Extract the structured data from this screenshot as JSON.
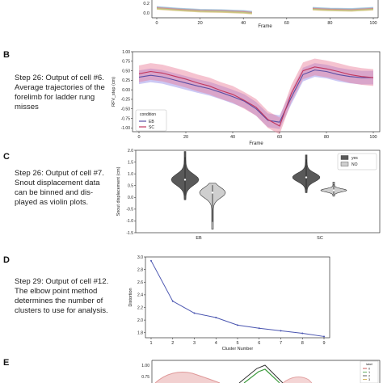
{
  "labels": [
    "B",
    "C",
    "D",
    "E"
  ],
  "descriptions": {
    "b": "Step 26: Output of cell #6.\nAverage trajectories of the\nforelimb for ladder rung\nmisses",
    "c": "Step 26: Output of cell #7.\nSnout displacement data\ncan be binned and dis-\nplayed as violin plots.",
    "d": "Step 29: Output of cell #12.\nThe elbow point method\ndetermines the number of\nclusters to use for analysis."
  },
  "colors": {
    "eb": "#5b4fa3",
    "eb_band": "#8f86e6",
    "sc": "#c2375e",
    "sc_band": "#e87b96",
    "violin_eb": "#595959",
    "violin_sc": "#cfcfcf",
    "line_d": "#4a55b0"
  },
  "chart_data": [
    {
      "id": "top_partial",
      "type": "line",
      "xlabel": "Frame",
      "xticks": [
        0,
        20,
        40,
        60,
        80,
        100
      ],
      "yticks": [
        0.2,
        0.0
      ],
      "note": "partially visible at top edge"
    },
    {
      "id": "b",
      "type": "line",
      "xlabel": "Frame",
      "ylabel": "RFV_step (cm)",
      "xlim": [
        0,
        100
      ],
      "ylim": [
        -1.1,
        1.0
      ],
      "xticks": [
        0,
        20,
        40,
        60,
        80,
        100
      ],
      "yticks": [
        1.0,
        0.75,
        0.5,
        0.25,
        0.0,
        -0.25,
        -0.5,
        -0.75,
        -1.0
      ],
      "legend_title": "condition",
      "legend_position": "lower-left",
      "x": [
        0,
        5,
        10,
        15,
        20,
        25,
        30,
        35,
        40,
        45,
        50,
        55,
        60,
        65,
        70,
        75,
        80,
        85,
        90,
        95,
        100
      ],
      "series": [
        {
          "name": "EB",
          "values": [
            0.33,
            0.38,
            0.34,
            0.26,
            0.18,
            0.1,
            0.03,
            -0.07,
            -0.18,
            -0.3,
            -0.5,
            -0.8,
            -0.85,
            -0.2,
            0.4,
            0.52,
            0.48,
            0.4,
            0.35,
            0.32,
            0.32
          ],
          "band": 0.18
        },
        {
          "name": "SC",
          "values": [
            0.42,
            0.48,
            0.44,
            0.36,
            0.28,
            0.18,
            0.1,
            -0.02,
            -0.12,
            -0.28,
            -0.46,
            -0.78,
            -0.95,
            -0.1,
            0.5,
            0.6,
            0.55,
            0.48,
            0.4,
            0.35,
            0.32
          ],
          "band": 0.22
        }
      ]
    },
    {
      "id": "c",
      "type": "violin",
      "ylabel": "Snout displacement (cm)",
      "ylim": [
        -1.5,
        2.0
      ],
      "yticks": [
        2.0,
        1.5,
        1.0,
        0.5,
        0.0,
        -0.5,
        -1.0,
        -1.5
      ],
      "categories": [
        "EB",
        "SC"
      ],
      "legend_position": "top-right",
      "series": [
        {
          "name": "yes",
          "medians": [
            0.75,
            0.85
          ],
          "min": [
            -0.1,
            0.2
          ],
          "max": [
            1.95,
            1.8
          ]
        },
        {
          "name": "NO",
          "medians": [
            0.2,
            0.3
          ],
          "min": [
            -1.35,
            0.05
          ],
          "max": [
            0.6,
            0.65
          ]
        }
      ]
    },
    {
      "id": "d",
      "type": "line",
      "xlabel": "Cluster Number",
      "ylabel": "Distortion",
      "xlim": [
        1,
        9
      ],
      "ylim": [
        1.72,
        3.0
      ],
      "xticks": [
        1,
        2,
        3,
        4,
        5,
        6,
        7,
        8,
        9
      ],
      "yticks": [
        3.0,
        2.8,
        2.6,
        2.4,
        2.2,
        2.0,
        1.8
      ],
      "x": [
        1,
        2,
        3,
        4,
        5,
        6,
        7,
        8,
        9
      ],
      "values": [
        2.94,
        2.3,
        2.11,
        2.04,
        1.92,
        1.87,
        1.83,
        1.79,
        1.74
      ]
    },
    {
      "id": "e_partial",
      "type": "line",
      "yticks": [
        1.0,
        0.75
      ],
      "legend_title": "label",
      "legend_entries": [
        "0",
        "1",
        "2",
        "3"
      ],
      "note": "partially visible at bottom edge"
    }
  ]
}
